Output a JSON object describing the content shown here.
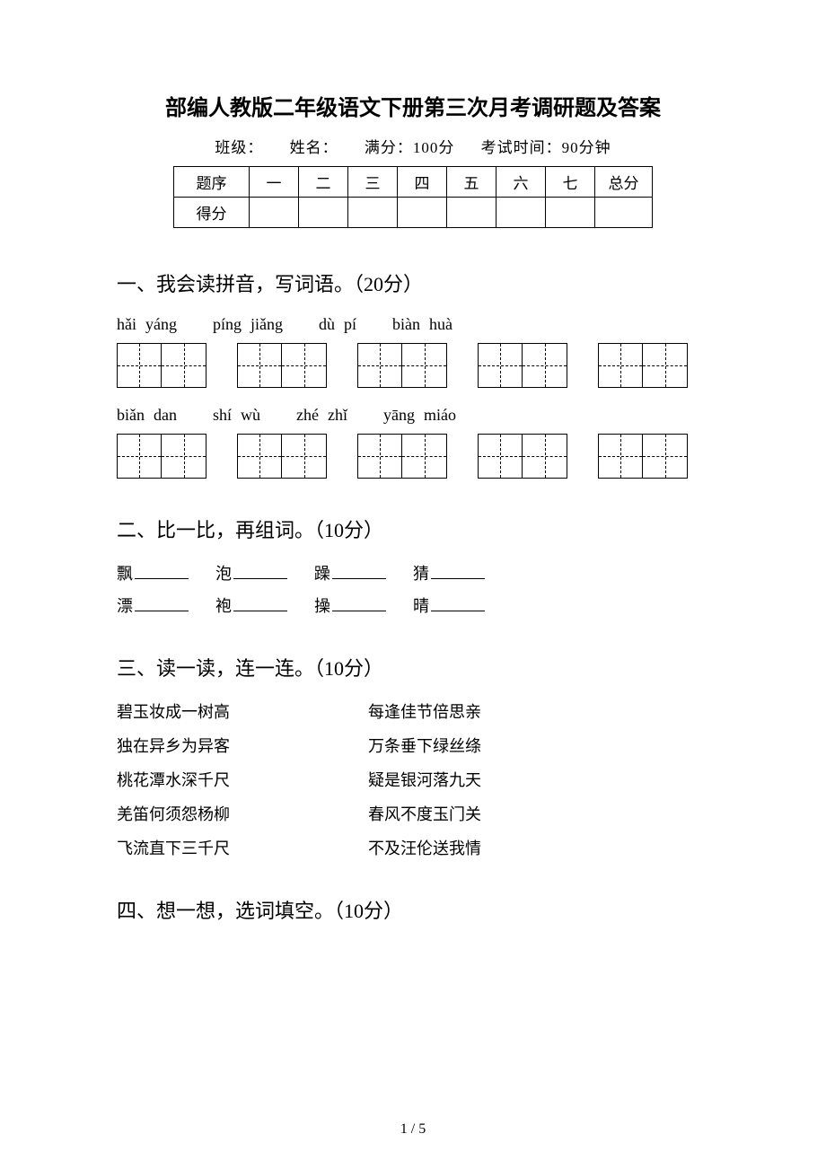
{
  "title": "部编人教版二年级语文下册第三次月考调研题及答案",
  "info": {
    "class_label": "班级：",
    "name_label": "姓名：",
    "full_marks": "满分：100分",
    "time": "考试时间：90分钟"
  },
  "score_table": {
    "row_header_1": "题序",
    "row_header_2": "得分",
    "cols": [
      "一",
      "二",
      "三",
      "四",
      "五",
      "六",
      "七",
      "总分"
    ]
  },
  "section1": {
    "title": "一、我会读拼音，写词语。（20分）",
    "pinyin_row1": [
      [
        "hǎi",
        "yáng"
      ],
      [
        "píng",
        "jiǎng"
      ],
      [
        "dù",
        "pí"
      ],
      [
        "biàn",
        "huà"
      ]
    ],
    "pinyin_row2": [
      [
        "biǎn",
        "dan"
      ],
      [
        "shí",
        "wù"
      ],
      [
        "zhé",
        "zhǐ"
      ],
      [
        "yāng",
        "miáo"
      ]
    ]
  },
  "section2": {
    "title": "二、比一比，再组词。（10分）",
    "row1": [
      "飘",
      "泡",
      "躁",
      "猜"
    ],
    "row2": [
      "漂",
      "袍",
      "操",
      "晴"
    ]
  },
  "section3": {
    "title": "三、读一读，连一连。（10分）",
    "pairs": [
      [
        "碧玉妆成一树高",
        "每逢佳节倍思亲"
      ],
      [
        "独在异乡为异客",
        "万条垂下绿丝绦"
      ],
      [
        "桃花潭水深千尺",
        "疑是银河落九天"
      ],
      [
        "羌笛何须怨杨柳",
        "春风不度玉门关"
      ],
      [
        "飞流直下三千尺",
        "不及汪伦送我情"
      ]
    ]
  },
  "section4": {
    "title": "四、想一想，选词填空。（10分）"
  },
  "page_number": "1 / 5"
}
